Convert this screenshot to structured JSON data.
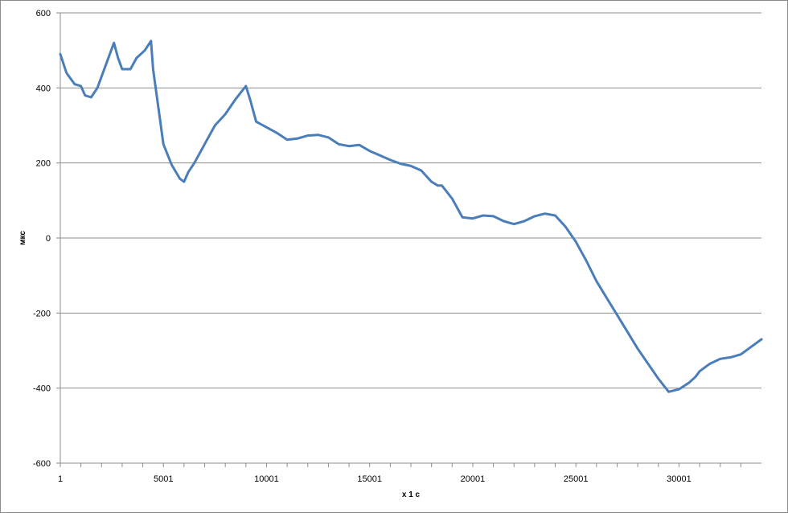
{
  "chart_data": {
    "type": "line",
    "title": "",
    "xlabel": "x 1 c",
    "ylabel": "мкс",
    "xlim": [
      1,
      34000
    ],
    "ylim": [
      -600,
      600
    ],
    "grid": true,
    "legend": "none",
    "x_ticks": [
      "1",
      "5001",
      "10001",
      "15001",
      "20001",
      "25001",
      "30001"
    ],
    "x_tick_values": [
      1,
      5001,
      10001,
      15001,
      20001,
      25001,
      30001
    ],
    "y_ticks": [
      "600",
      "400",
      "200",
      "0",
      "-200",
      "-400",
      "-600"
    ],
    "y_tick_values": [
      600,
      400,
      200,
      0,
      -200,
      -400,
      -600
    ],
    "series_color": "#4a7ebb",
    "series": [
      {
        "name": "",
        "x": [
          1,
          300,
          700,
          1000,
          1200,
          1500,
          1800,
          2200,
          2600,
          2800,
          3000,
          3400,
          3700,
          4100,
          4400,
          4500,
          4800,
          5000,
          5400,
          5800,
          6000,
          6200,
          6500,
          7000,
          7500,
          8000,
          8500,
          9000,
          9200,
          9500,
          10000,
          10500,
          11000,
          11500,
          12000,
          12500,
          13000,
          13500,
          14000,
          14500,
          15000,
          15500,
          16000,
          16500,
          17000,
          17500,
          18000,
          18300,
          18500,
          19000,
          19500,
          20000,
          20500,
          21000,
          21500,
          22000,
          22500,
          23000,
          23500,
          24000,
          24500,
          25000,
          25500,
          26000,
          26500,
          27000,
          27500,
          28000,
          28500,
          29000,
          29500,
          30000,
          30500,
          30800,
          31000,
          31500,
          32000,
          32500,
          33000,
          33500,
          34000
        ],
        "y": [
          490,
          440,
          410,
          405,
          380,
          375,
          400,
          460,
          520,
          480,
          450,
          450,
          480,
          500,
          525,
          450,
          330,
          250,
          195,
          158,
          150,
          175,
          200,
          250,
          300,
          330,
          370,
          405,
          370,
          310,
          295,
          280,
          262,
          265,
          273,
          275,
          268,
          250,
          245,
          248,
          232,
          220,
          208,
          198,
          192,
          180,
          150,
          140,
          140,
          105,
          55,
          52,
          60,
          58,
          45,
          37,
          45,
          58,
          65,
          60,
          30,
          -10,
          -60,
          -115,
          -160,
          -205,
          -250,
          -295,
          -335,
          -375,
          -410,
          -403,
          -385,
          -370,
          -355,
          -335,
          -322,
          -318,
          -310,
          -290,
          -270
        ]
      }
    ]
  }
}
